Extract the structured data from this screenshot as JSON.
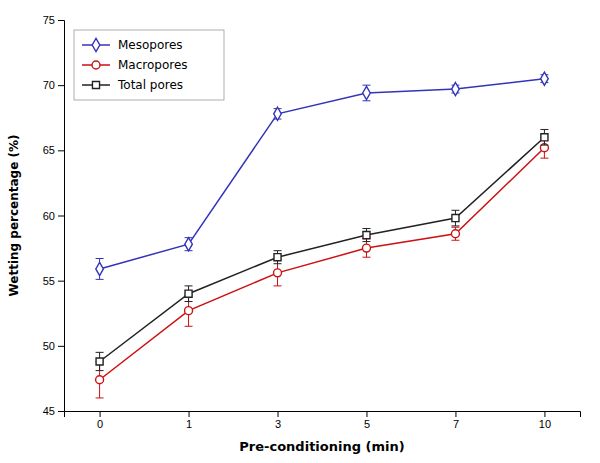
{
  "chart_data": {
    "type": "line",
    "categories": [
      "0",
      "1",
      "3",
      "5",
      "7",
      "10"
    ],
    "series": [
      {
        "name": "Mesopores",
        "color": "#3333bb",
        "marker": "diamond",
        "line_style": "solid",
        "values": [
          55.9,
          57.8,
          67.8,
          69.4,
          69.7,
          70.5
        ],
        "errors": [
          0.8,
          0.5,
          0.4,
          0.6,
          0.3,
          0.3
        ]
      },
      {
        "name": "Macropores",
        "color": "#cc1111",
        "marker": "circle",
        "line_style": "solid",
        "values": [
          47.4,
          52.7,
          55.6,
          57.5,
          58.6,
          65.2
        ],
        "errors": [
          1.4,
          1.2,
          1.0,
          0.7,
          0.5,
          0.8
        ]
      },
      {
        "name": "Total pores",
        "color": "#222222",
        "marker": "square",
        "line_style": "solid",
        "values": [
          48.8,
          54.0,
          56.8,
          58.5,
          59.8,
          66.0
        ],
        "errors": [
          0.7,
          0.6,
          0.5,
          0.5,
          0.6,
          0.6
        ]
      }
    ],
    "x_label": "Pre-conditioning (min)",
    "y_label": "Wetting percentage (%)",
    "ylim": [
      45,
      75
    ],
    "yticks": [
      45,
      50,
      55,
      60,
      65,
      70,
      75
    ],
    "grid": false,
    "legend": "upper-left"
  }
}
